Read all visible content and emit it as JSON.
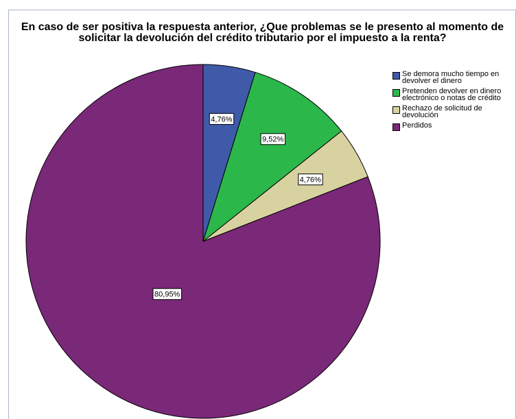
{
  "chart_data": {
    "type": "pie",
    "title": "En caso de ser positiva la respuesta anterior, ¿Que problemas se le presento al momento de solicitar la devolución del crédito tributario por el impuesto a la renta?",
    "categories": [
      "Se demora mucho tiempo en devolver el dinero",
      "Pretenden devolver en dinero electrónico o notas de crédito",
      "Rechazo de solicitud de devolución",
      "Perdidos"
    ],
    "values": [
      4.76,
      9.52,
      4.76,
      80.95
    ],
    "value_labels": [
      "4,76%",
      "9,52%",
      "4,76%",
      "80,95%"
    ],
    "colors": [
      "#3f5aa8",
      "#2cb74b",
      "#d8d2a0",
      "#7a2878"
    ],
    "legend": "right"
  }
}
